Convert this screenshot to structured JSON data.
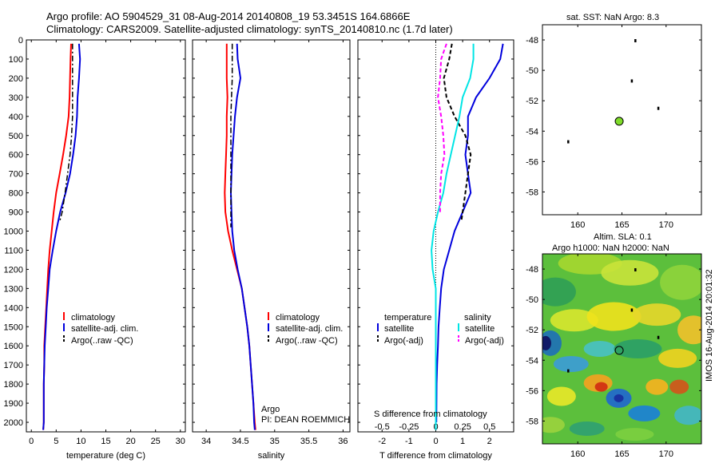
{
  "title": {
    "line1": "Argo profile: AO 5904529_31 08-Aug-2014 20140808_19 53.3451S 164.6866E",
    "line2": "Climatology: CARS2009. Satellite-adjusted climatology: synTS_20140810.nc (1.7d later)"
  },
  "annotations": {
    "argo": "Argo",
    "pi": "PI: DEAN ROEMMICH",
    "timestamp": "IMOS 16-Aug-2014 20:01:32",
    "s_diff_label": "S difference from climatology",
    "map1_title": "sat. SST: NaN Argo: 8.3",
    "map2_title_1": "Altim. SLA: 0.1",
    "map2_title_2": "Argo h1000: NaN h2000: NaN"
  },
  "colors": {
    "climatology": "#ff0000",
    "satellite": "#0000dd",
    "argo": "#000000",
    "sat_salinity": "#00e5e5",
    "argo_salinity": "#ff00ff",
    "argo_marker": "#7fdc2a"
  },
  "chart_data": [
    {
      "type": "line",
      "xlabel": "temperature (deg C)",
      "ylabel": "",
      "xlim": [
        -1,
        31
      ],
      "ylim": [
        2050,
        0
      ],
      "xticks": [
        0,
        5,
        10,
        15,
        20,
        25,
        30
      ],
      "yticks": [
        0,
        100,
        200,
        300,
        400,
        500,
        600,
        700,
        800,
        900,
        1000,
        1100,
        1200,
        1300,
        1400,
        1500,
        1600,
        1700,
        1800,
        1900,
        2000
      ],
      "legend": [
        "climatology",
        "satellite-adj. clim.",
        "Argo(..raw -QC)"
      ],
      "legend_position": "bottom-right",
      "series": [
        {
          "name": "climatology",
          "x": [
            8.0,
            7.9,
            7.8,
            7.7,
            7.5,
            7.0,
            6.4,
            5.7,
            5.0,
            4.5,
            4.1,
            3.7,
            3.4,
            3.2,
            3.0,
            2.8,
            2.6,
            2.6,
            2.5,
            2.5,
            2.5,
            2.4
          ],
          "y": [
            20,
            100,
            200,
            300,
            400,
            500,
            600,
            700,
            800,
            900,
            1000,
            1100,
            1200,
            1300,
            1400,
            1500,
            1600,
            1700,
            1800,
            1900,
            2000,
            2040
          ]
        },
        {
          "name": "satellite-adj. clim.",
          "x": [
            9.6,
            9.8,
            9.6,
            9.3,
            9.2,
            8.9,
            8.4,
            7.8,
            6.9,
            5.8,
            5.0,
            4.3,
            3.7,
            3.4,
            3.1,
            2.9,
            2.7,
            2.6,
            2.5,
            2.5,
            2.5,
            2.4
          ],
          "y": [
            20,
            100,
            200,
            300,
            400,
            500,
            600,
            700,
            800,
            900,
            1000,
            1100,
            1200,
            1300,
            1400,
            1500,
            1600,
            1700,
            1800,
            1900,
            2000,
            2040
          ]
        },
        {
          "name": "Argo(..raw -QC)",
          "x": [
            8.3,
            8.3,
            8.3,
            8.3,
            8.3,
            8.1,
            7.8,
            7.3,
            6.8,
            6.2,
            5.7
          ],
          "y": [
            20,
            100,
            200,
            300,
            400,
            500,
            600,
            700,
            800,
            900,
            950
          ]
        }
      ]
    },
    {
      "type": "line",
      "xlabel": "salinity",
      "ylabel": "",
      "xlim": [
        33.8,
        36.1
      ],
      "ylim": [
        2050,
        0
      ],
      "xticks": [
        34,
        34.5,
        35,
        35.5,
        36
      ],
      "xticklabels": [
        "34",
        "34.5",
        "35",
        "35.5",
        "36"
      ],
      "legend": [
        "climatology",
        "satellite-adj. clim.",
        "Argo(..raw -QC)"
      ],
      "legend_position": "bottom-right",
      "series": [
        {
          "name": "climatology",
          "x": [
            34.3,
            34.3,
            34.3,
            34.31,
            34.3,
            34.3,
            34.29,
            34.28,
            34.27,
            34.28,
            34.32,
            34.38,
            34.45,
            34.52,
            34.56,
            34.6,
            34.63,
            34.65,
            34.67,
            34.69,
            34.71,
            34.72
          ],
          "y": [
            20,
            100,
            200,
            300,
            400,
            500,
            600,
            700,
            800,
            900,
            1000,
            1100,
            1200,
            1300,
            1400,
            1500,
            1600,
            1700,
            1800,
            1900,
            2000,
            2040
          ]
        },
        {
          "name": "satellite-adj. clim.",
          "x": [
            34.45,
            34.46,
            34.5,
            34.45,
            34.42,
            34.4,
            34.38,
            34.37,
            34.36,
            34.37,
            34.38,
            34.41,
            34.46,
            34.52,
            34.56,
            34.6,
            34.63,
            34.65,
            34.67,
            34.69,
            34.7,
            34.71
          ],
          "y": [
            20,
            100,
            200,
            300,
            400,
            500,
            600,
            700,
            800,
            900,
            1000,
            1100,
            1200,
            1300,
            1400,
            1500,
            1600,
            1700,
            1800,
            1900,
            2000,
            2040
          ]
        },
        {
          "name": "Argo(..raw -QC)",
          "x": [
            34.38,
            34.38,
            34.38,
            34.37,
            34.36,
            34.36,
            34.36,
            34.36,
            34.36,
            34.36,
            34.36
          ],
          "y": [
            20,
            100,
            200,
            300,
            400,
            500,
            600,
            700,
            800,
            900,
            980
          ]
        }
      ]
    },
    {
      "type": "line",
      "xlabel": "T difference from climatology",
      "xlabel_top": "S difference from climatology",
      "ylabel": "",
      "xlim": [
        -2.9,
        2.9
      ],
      "ylim": [
        2050,
        0
      ],
      "xticks": [
        -2,
        -1,
        0,
        1,
        2
      ],
      "xticklabels_top": [
        "-0.5",
        "-0.25",
        "0",
        "0.25",
        "0.5"
      ],
      "legend": [
        "temperature",
        "satellite",
        "Argo(-adj)",
        "salinity",
        "satellite",
        "Argo(-adj)"
      ],
      "legend_position": "bottom",
      "series": [
        {
          "name": "satellite",
          "x": [
            2.5,
            2.4,
            2.0,
            1.5,
            1.2,
            1.2,
            1.1,
            1.2,
            1.3,
            1.0,
            0.7,
            0.5,
            0.3,
            0.2,
            0.15,
            0.1,
            0.08,
            0.05,
            0.03,
            0.02
          ],
          "y": [
            20,
            100,
            200,
            300,
            400,
            500,
            600,
            700,
            800,
            900,
            1000,
            1100,
            1200,
            1300,
            1400,
            1500,
            1600,
            1700,
            1800,
            2000
          ]
        },
        {
          "name": "Argo(-adj)",
          "x": [
            0.6,
            0.5,
            0.3,
            0.4,
            0.7,
            1.1,
            1.3,
            1.2,
            1.1,
            1.0,
            0.95
          ],
          "y": [
            20,
            100,
            200,
            300,
            400,
            500,
            600,
            700,
            800,
            900,
            950
          ]
        },
        {
          "name": "satellite",
          "x": [
            0.35,
            0.35,
            0.32,
            0.25,
            0.22,
            0.18,
            0.14,
            0.1,
            0.07,
            0.02,
            -0.02,
            -0.04,
            -0.03,
            0.0,
            0.0,
            0.0,
            0.0,
            0.0,
            0.0
          ],
          "y": [
            20,
            100,
            200,
            300,
            400,
            500,
            600,
            700,
            800,
            900,
            1000,
            1100,
            1200,
            1300,
            1400,
            1500,
            1600,
            1800,
            2040
          ]
        },
        {
          "name": "Argo(-adj)",
          "x": [
            0.1,
            0.05,
            0.04,
            0.02,
            0.05,
            0.07,
            0.08,
            0.05,
            0.04,
            0.04
          ],
          "y": [
            20,
            100,
            200,
            300,
            400,
            500,
            600,
            700,
            800,
            900
          ]
        }
      ]
    },
    {
      "type": "scatter",
      "title": "sat. SST: NaN Argo: 8.3",
      "xlim": [
        156,
        174
      ],
      "ylim": [
        -59.5,
        -47
      ],
      "xticks": [
        160,
        165,
        170
      ],
      "yticks": [
        -48,
        -50,
        -52,
        -54,
        -56,
        -58
      ],
      "points": [
        {
          "x": 164.69,
          "y": -53.35,
          "label": "Argo float"
        }
      ]
    },
    {
      "type": "heatmap",
      "title": "Altim. SLA: 0.1 / Argo h1000: NaN h2000: NaN",
      "xlim": [
        156,
        174
      ],
      "ylim": [
        -59.5,
        -47
      ],
      "xticks": [
        160,
        165,
        170
      ],
      "yticks": [
        -48,
        -50,
        -52,
        -54,
        -56,
        -58
      ],
      "points": [
        {
          "x": 164.69,
          "y": -53.35,
          "label": "Argo float"
        }
      ]
    }
  ]
}
